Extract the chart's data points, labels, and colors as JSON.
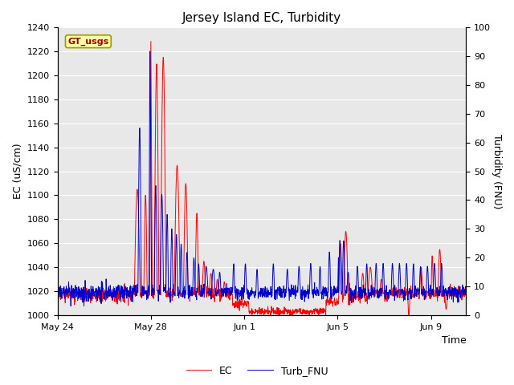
{
  "title": "Jersey Island EC, Turbidity",
  "xlabel": "Time",
  "ylabel_left": "EC (uS/cm)",
  "ylabel_right": "Turbidity (FNU)",
  "ylim_left": [
    1000,
    1240
  ],
  "ylim_right": [
    0,
    100
  ],
  "ec_color": "#FF0000",
  "turb_color": "#0000CC",
  "fig_bg_color": "#FFFFFF",
  "plot_bg_color": "#E8E8E8",
  "grid_color": "#FFFFFF",
  "gt_usgs_label": "GT_usgs",
  "gt_usgs_bg": "#FFFFAA",
  "gt_usgs_border": "#999900",
  "gt_usgs_text_color": "#990000",
  "legend_ec": "EC",
  "legend_turb": "Turb_FNU",
  "x_tick_labels": [
    "May 24",
    "May 28",
    "Jun 1",
    "Jun 5",
    "Jun 9"
  ],
  "title_fontsize": 11,
  "axis_label_fontsize": 9,
  "tick_fontsize": 8,
  "legend_fontsize": 9
}
